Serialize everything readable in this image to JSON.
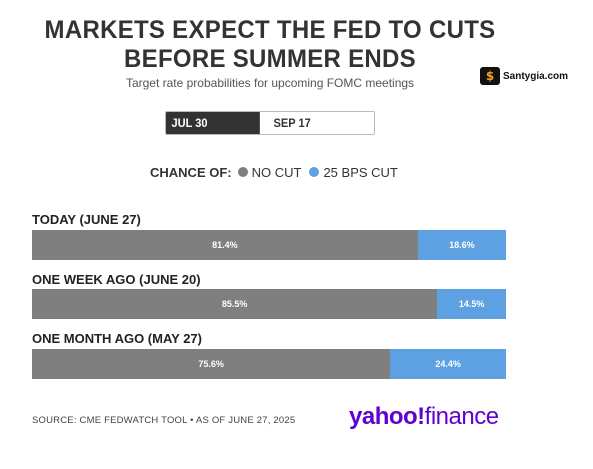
{
  "header": {
    "title_line1": "MARKETS EXPECT THE FED TO CUTS",
    "title_line2": "BEFORE SUMMER ENDS",
    "subtitle": "Target rate probabilities for upcoming FOMC meetings"
  },
  "watermark": {
    "text": "Santygia.com"
  },
  "toggle": {
    "options": [
      "JUL 30 MEETING",
      "SEP 17 MEETING"
    ],
    "selected": "JUL 30 MEETING"
  },
  "legend": {
    "title": "CHANCE OF:",
    "items": [
      "NO CUT",
      "25 BPS CUT"
    ]
  },
  "colors": {
    "no_cut": "#7f7f7f",
    "cut_25": "#5ea1e3"
  },
  "chart_data": {
    "type": "bar",
    "orientation": "horizontal-stacked-100",
    "categories": [
      "TODAY (JUNE 27)",
      "ONE WEEK AGO (JUNE 20)",
      "ONE MONTH AGO (MAY 27)"
    ],
    "series": [
      {
        "name": "NO CUT",
        "values": [
          81.4,
          85.5,
          75.6
        ],
        "labels": [
          "81.4%",
          "85.5%",
          "75.6%"
        ]
      },
      {
        "name": "25 BPS CUT",
        "values": [
          18.6,
          14.5,
          24.4
        ],
        "labels": [
          "18.6%",
          "14.5%",
          "24.4%"
        ]
      }
    ],
    "xlim": [
      0,
      100
    ],
    "grid": false,
    "legend_position": "top"
  },
  "footer": {
    "source": "SOURCE: CME FEDWATCH TOOL • AS OF JUNE 27, 2025",
    "logo_part1": "yahoo!",
    "logo_part2": "finance"
  }
}
